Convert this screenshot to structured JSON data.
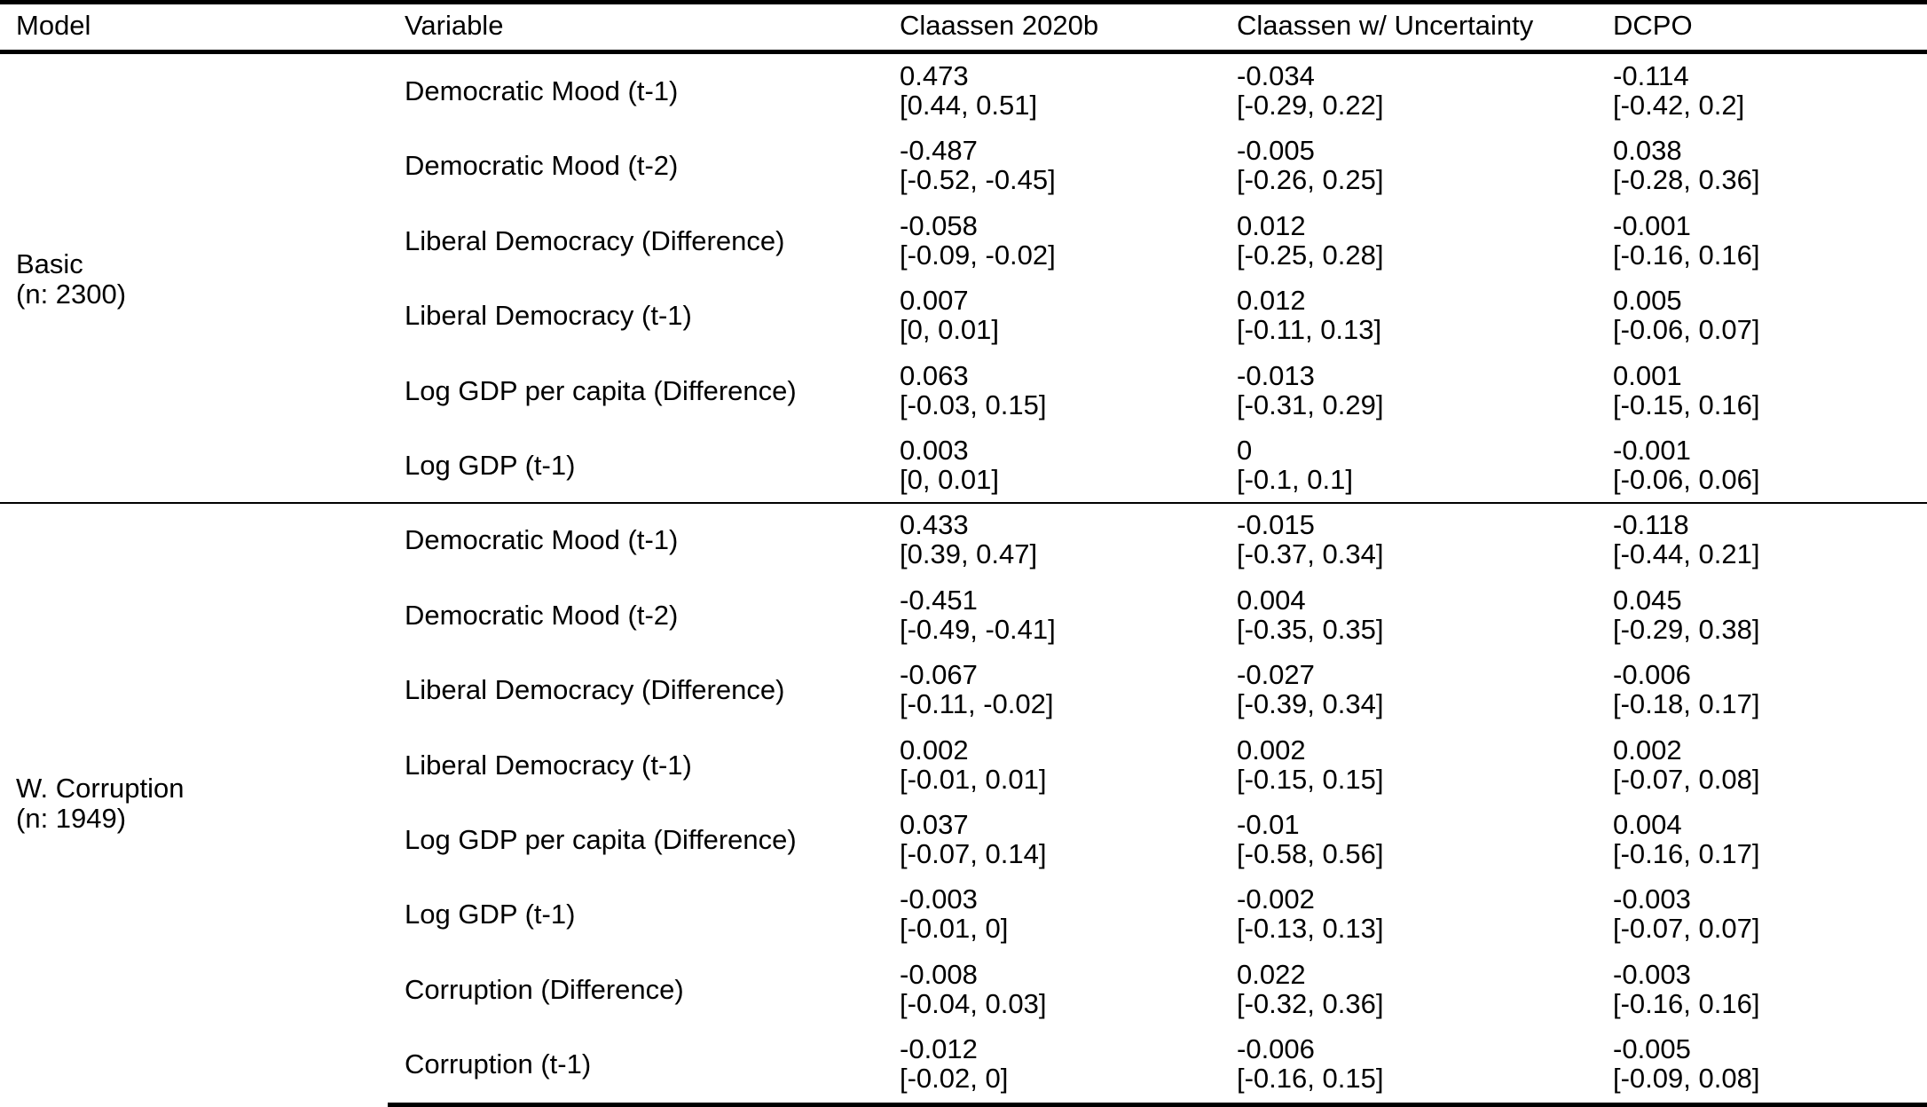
{
  "columns": [
    "Model",
    "Variable",
    "Claassen 2020b",
    "Claassen w/ Uncertainty",
    "DCPO"
  ],
  "groups": [
    {
      "model": "Basic",
      "n": "(n: 2300)",
      "rows": [
        {
          "variable": "Democratic Mood (t-1)",
          "cells": [
            {
              "est": "0.473",
              "ci": "[0.44, 0.51]"
            },
            {
              "est": "-0.034",
              "ci": "[-0.29, 0.22]"
            },
            {
              "est": "-0.114",
              "ci": "[-0.42, 0.2]"
            }
          ]
        },
        {
          "variable": "Democratic Mood (t-2)",
          "cells": [
            {
              "est": "-0.487",
              "ci": "[-0.52, -0.45]"
            },
            {
              "est": "-0.005",
              "ci": "[-0.26, 0.25]"
            },
            {
              "est": "0.038",
              "ci": "[-0.28, 0.36]"
            }
          ]
        },
        {
          "variable": "Liberal Democracy (Difference)",
          "cells": [
            {
              "est": "-0.058",
              "ci": "[-0.09, -0.02]"
            },
            {
              "est": "0.012",
              "ci": "[-0.25, 0.28]"
            },
            {
              "est": "-0.001",
              "ci": "[-0.16, 0.16]"
            }
          ]
        },
        {
          "variable": "Liberal Democracy (t-1)",
          "cells": [
            {
              "est": "0.007",
              "ci": "[0, 0.01]"
            },
            {
              "est": "0.012",
              "ci": "[-0.11, 0.13]"
            },
            {
              "est": "0.005",
              "ci": "[-0.06, 0.07]"
            }
          ]
        },
        {
          "variable": "Log GDP per capita (Difference)",
          "cells": [
            {
              "est": "0.063",
              "ci": "[-0.03, 0.15]"
            },
            {
              "est": "-0.013",
              "ci": "[-0.31, 0.29]"
            },
            {
              "est": "0.001",
              "ci": "[-0.15, 0.16]"
            }
          ]
        },
        {
          "variable": "Log GDP (t-1)",
          "cells": [
            {
              "est": "0.003",
              "ci": "[0, 0.01]"
            },
            {
              "est": "0",
              "ci": "[-0.1, 0.1]"
            },
            {
              "est": "-0.001",
              "ci": "[-0.06, 0.06]"
            }
          ]
        }
      ]
    },
    {
      "model": "W. Corruption",
      "n": "(n: 1949)",
      "rows": [
        {
          "variable": "Democratic Mood (t-1)",
          "cells": [
            {
              "est": "0.433",
              "ci": "[0.39, 0.47]"
            },
            {
              "est": "-0.015",
              "ci": "[-0.37, 0.34]"
            },
            {
              "est": "-0.118",
              "ci": "[-0.44, 0.21]"
            }
          ]
        },
        {
          "variable": "Democratic Mood (t-2)",
          "cells": [
            {
              "est": "-0.451",
              "ci": "[-0.49, -0.41]"
            },
            {
              "est": "0.004",
              "ci": "[-0.35, 0.35]"
            },
            {
              "est": "0.045",
              "ci": "[-0.29, 0.38]"
            }
          ]
        },
        {
          "variable": "Liberal Democracy (Difference)",
          "cells": [
            {
              "est": "-0.067",
              "ci": "[-0.11, -0.02]"
            },
            {
              "est": "-0.027",
              "ci": "[-0.39, 0.34]"
            },
            {
              "est": "-0.006",
              "ci": "[-0.18, 0.17]"
            }
          ]
        },
        {
          "variable": "Liberal Democracy (t-1)",
          "cells": [
            {
              "est": "0.002",
              "ci": "[-0.01, 0.01]"
            },
            {
              "est": "0.002",
              "ci": "[-0.15, 0.15]"
            },
            {
              "est": "0.002",
              "ci": "[-0.07, 0.08]"
            }
          ]
        },
        {
          "variable": "Log GDP per capita (Difference)",
          "cells": [
            {
              "est": "0.037",
              "ci": "[-0.07, 0.14]"
            },
            {
              "est": "-0.01",
              "ci": "[-0.58, 0.56]"
            },
            {
              "est": "0.004",
              "ci": "[-0.16, 0.17]"
            }
          ]
        },
        {
          "variable": "Log GDP (t-1)",
          "cells": [
            {
              "est": "-0.003",
              "ci": "[-0.01, 0]"
            },
            {
              "est": "-0.002",
              "ci": "[-0.13, 0.13]"
            },
            {
              "est": "-0.003",
              "ci": "[-0.07, 0.07]"
            }
          ]
        },
        {
          "variable": "Corruption (Difference)",
          "cells": [
            {
              "est": "-0.008",
              "ci": "[-0.04, 0.03]"
            },
            {
              "est": "0.022",
              "ci": "[-0.32, 0.36]"
            },
            {
              "est": "-0.003",
              "ci": "[-0.16, 0.16]"
            }
          ]
        },
        {
          "variable": "Corruption (t-1)",
          "cells": [
            {
              "est": "-0.012",
              "ci": "[-0.02, 0]"
            },
            {
              "est": "-0.006",
              "ci": "[-0.16, 0.15]"
            },
            {
              "est": "-0.005",
              "ci": "[-0.09, 0.08]"
            }
          ]
        }
      ]
    }
  ]
}
